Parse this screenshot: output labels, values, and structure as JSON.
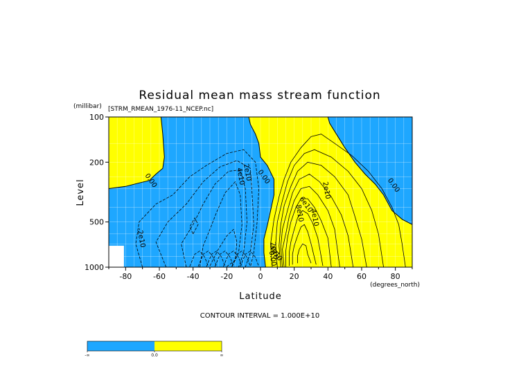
{
  "chart_data": {
    "type": "contour",
    "title": "Residual mean mass stream function",
    "dataset_label": "[STRM_RMEAN_1976-11_NCEP.nc]",
    "xlabel": "Latitude",
    "x_units": "(degrees_north)",
    "ylabel": "Level",
    "y_units": "(millibar)",
    "xlim": [
      -90,
      90
    ],
    "ylim": [
      1000,
      100
    ],
    "y_scale": "log",
    "x_ticks": [
      -80,
      -60,
      -40,
      -20,
      0,
      20,
      40,
      60,
      80
    ],
    "y_ticks": [
      100,
      200,
      500,
      1000
    ],
    "grid": true,
    "contour_interval_text": "CONTOUR INTERVAL = 1.000E+10",
    "contour_labels": [
      {
        "text": "0.00",
        "lat": -66,
        "p": 270
      },
      {
        "text": "4e10",
        "lat": -13,
        "p": 250
      },
      {
        "text": "2e10",
        "lat": -9,
        "p": 235
      },
      {
        "text": "0.00",
        "lat": 1,
        "p": 255
      },
      {
        "text": "-2e10",
        "lat": -72,
        "p": 640
      },
      {
        "text": "2e10",
        "lat": 38,
        "p": 310
      },
      {
        "text": "6e10",
        "lat": 26,
        "p": 390
      },
      {
        "text": "8e10",
        "lat": 22,
        "p": 440
      },
      {
        "text": "4e10",
        "lat": 31,
        "p": 470
      },
      {
        "text": "0.00",
        "lat": 78,
        "p": 290
      },
      {
        "text": "2e10",
        "lat": 7,
        "p": 780
      },
      {
        "text": "0.00",
        "lat": 6,
        "p": 880
      },
      {
        "text": "4e10",
        "lat": 8,
        "p": 820
      }
    ],
    "colors": {
      "negative": "#1ea7ff",
      "positive": "#ffff00",
      "missing": "#ffffff"
    },
    "colorbar": {
      "labels": [
        "-∞",
        "0.0",
        "∞"
      ]
    }
  }
}
